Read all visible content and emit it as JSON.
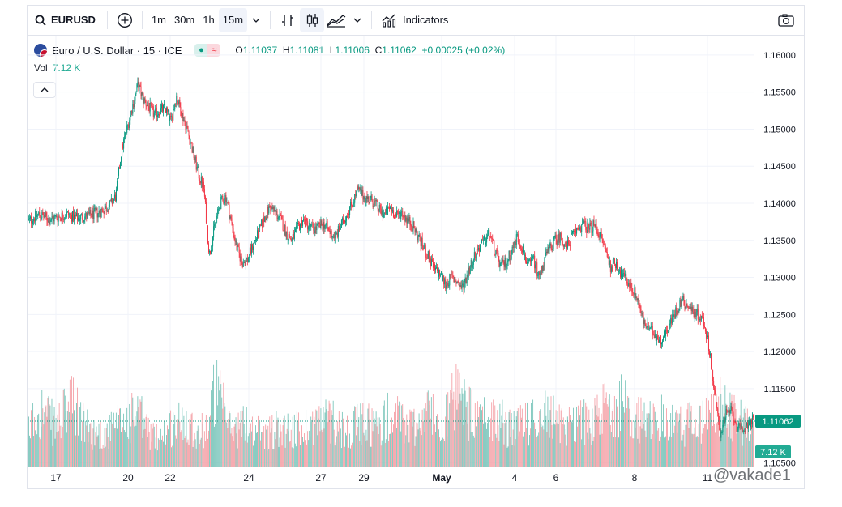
{
  "toolbar": {
    "symbol": "EURUSD",
    "intervals": [
      "1m",
      "30m",
      "1h",
      "15m"
    ],
    "active_interval": "15m",
    "indicators_label": "Indicators"
  },
  "legend": {
    "title": "Euro / U.S. Dollar · 15 · ICE",
    "open_label": "O",
    "open": "1.11037",
    "high_label": "H",
    "high": "1.11081",
    "low_label": "L",
    "low": "1.11006",
    "close_label": "C",
    "close": "1.11062",
    "change": "+0.00025 (+0.02%)"
  },
  "volume": {
    "label": "Vol",
    "value": "7.12 K"
  },
  "price_axis": {
    "ticks": [
      "1.16000",
      "1.15500",
      "1.15000",
      "1.14500",
      "1.14000",
      "1.13500",
      "1.13000",
      "1.12500",
      "1.12000",
      "1.11500",
      "1.10500"
    ],
    "current_price_label": "1.11062",
    "volume_label": "7.12 K"
  },
  "time_axis": {
    "ticks": [
      "17",
      "20",
      "22",
      "24",
      "27",
      "29",
      "May",
      "4",
      "6",
      "8",
      "11"
    ]
  },
  "watermark": "@vakade1",
  "colors": {
    "up": "#089981",
    "down": "#f23645",
    "up_volume": "#7fc7bd",
    "down_volume": "#f5a3a9",
    "accent": "#089981"
  },
  "chart_data": {
    "type": "candlestick",
    "ylim": [
      1.1045,
      1.1625
    ],
    "price_path": [
      [
        0,
        1.1375
      ],
      [
        2,
        1.1385
      ],
      [
        4,
        1.1378
      ],
      [
        7,
        1.1385
      ],
      [
        9,
        1.138
      ],
      [
        11,
        1.1383
      ],
      [
        13,
        1.1388
      ],
      [
        15,
        1.1398
      ],
      [
        16,
        1.141
      ],
      [
        17,
        1.147
      ],
      [
        19,
        1.153
      ],
      [
        20,
        1.156
      ],
      [
        21,
        1.154
      ],
      [
        23,
        1.152
      ],
      [
        24,
        1.1525
      ],
      [
        25,
        1.1528
      ],
      [
        26,
        1.151
      ],
      [
        27,
        1.1545
      ],
      [
        28,
        1.152
      ],
      [
        29,
        1.15
      ],
      [
        30,
        1.147
      ],
      [
        31,
        1.144
      ],
      [
        32,
        1.142
      ],
      [
        33,
        1.133
      ],
      [
        34,
        1.137
      ],
      [
        35,
        1.14
      ],
      [
        36,
        1.141
      ],
      [
        37,
        1.1375
      ],
      [
        38,
        1.134
      ],
      [
        39,
        1.132
      ],
      [
        40,
        1.1325
      ],
      [
        41,
        1.1345
      ],
      [
        42,
        1.136
      ],
      [
        43,
        1.138
      ],
      [
        44,
        1.1395
      ],
      [
        45,
        1.1388
      ],
      [
        46,
        1.1378
      ],
      [
        47,
        1.136
      ],
      [
        48,
        1.135
      ],
      [
        49,
        1.1365
      ],
      [
        50,
        1.1378
      ],
      [
        51,
        1.137
      ],
      [
        52,
        1.1365
      ],
      [
        54,
        1.1372
      ],
      [
        55,
        1.136
      ],
      [
        56,
        1.1355
      ],
      [
        57,
        1.137
      ],
      [
        59,
        1.14
      ],
      [
        60,
        1.1418
      ],
      [
        61,
        1.141
      ],
      [
        62,
        1.1405
      ],
      [
        63,
        1.1402
      ],
      [
        64,
        1.139
      ],
      [
        65,
        1.1385
      ],
      [
        66,
        1.1395
      ],
      [
        67,
        1.1382
      ],
      [
        68,
        1.1388
      ],
      [
        69,
        1.1378
      ],
      [
        70,
        1.137
      ],
      [
        71,
        1.1355
      ],
      [
        72,
        1.134
      ],
      [
        73,
        1.1325
      ],
      [
        74,
        1.131
      ],
      [
        75,
        1.1305
      ],
      [
        76,
        1.129
      ],
      [
        77,
        1.13
      ],
      [
        78,
        1.1295
      ],
      [
        79,
        1.1285
      ],
      [
        80,
        1.1305
      ],
      [
        81,
        1.1325
      ],
      [
        82,
        1.134
      ],
      [
        83,
        1.1348
      ],
      [
        84,
        1.136
      ],
      [
        85,
        1.1335
      ],
      [
        86,
        1.1315
      ],
      [
        87,
        1.132
      ],
      [
        88,
        1.1335
      ],
      [
        89,
        1.1355
      ],
      [
        90,
        1.134
      ],
      [
        91,
        1.1315
      ],
      [
        92,
        1.1325
      ],
      [
        93,
        1.13
      ],
      [
        94,
        1.1325
      ],
      [
        95,
        1.134
      ],
      [
        96,
        1.135
      ],
      [
        97,
        1.1355
      ],
      [
        98,
        1.134
      ],
      [
        99,
        1.1355
      ],
      [
        100,
        1.1365
      ],
      [
        101,
        1.1372
      ],
      [
        102,
        1.1365
      ],
      [
        103,
        1.137
      ],
      [
        104,
        1.136
      ],
      [
        105,
        1.134
      ],
      [
        106,
        1.1315
      ],
      [
        107,
        1.132
      ],
      [
        108,
        1.1305
      ],
      [
        109,
        1.1295
      ],
      [
        110,
        1.1285
      ],
      [
        111,
        1.127
      ],
      [
        112,
        1.124
      ],
      [
        113,
        1.123
      ],
      [
        114,
        1.1225
      ],
      [
        115,
        1.1215
      ],
      [
        116,
        1.1225
      ],
      [
        117,
        1.124
      ],
      [
        118,
        1.1255
      ],
      [
        119,
        1.127
      ],
      [
        120,
        1.1262
      ],
      [
        121,
        1.1255
      ],
      [
        122,
        1.125
      ],
      [
        123,
        1.124
      ],
      [
        124,
        1.1205
      ],
      [
        125,
        1.114
      ],
      [
        126,
        1.109
      ],
      [
        127,
        1.1115
      ],
      [
        128,
        1.112
      ],
      [
        129,
        1.11
      ],
      [
        130,
        1.109
      ],
      [
        131,
        1.1105
      ],
      [
        132,
        1.1106
      ]
    ],
    "last_price": 1.11062,
    "volume_profile": [
      [
        0,
        0.42
      ],
      [
        2,
        0.75
      ],
      [
        5,
        0.5
      ],
      [
        8,
        0.78
      ],
      [
        11,
        0.45
      ],
      [
        14,
        0.4
      ],
      [
        17,
        0.55
      ],
      [
        20,
        0.65
      ],
      [
        23,
        0.35
      ],
      [
        26,
        0.5
      ],
      [
        29,
        0.6
      ],
      [
        31,
        0.4
      ],
      [
        33,
        0.55
      ],
      [
        34,
        0.98
      ],
      [
        37,
        0.45
      ],
      [
        40,
        0.55
      ],
      [
        43,
        0.4
      ],
      [
        46,
        0.5
      ],
      [
        49,
        0.45
      ],
      [
        52,
        0.55
      ],
      [
        55,
        0.6
      ],
      [
        58,
        0.45
      ],
      [
        61,
        0.55
      ],
      [
        64,
        0.5
      ],
      [
        66,
        0.65
      ],
      [
        70,
        0.5
      ],
      [
        73,
        0.7
      ],
      [
        75,
        0.55
      ],
      [
        78,
        0.85
      ],
      [
        82,
        0.55
      ],
      [
        85,
        0.65
      ],
      [
        88,
        0.45
      ],
      [
        91,
        0.55
      ],
      [
        94,
        0.7
      ],
      [
        97,
        0.5
      ],
      [
        100,
        0.6
      ],
      [
        103,
        0.55
      ],
      [
        106,
        0.8
      ],
      [
        109,
        0.75
      ],
      [
        112,
        0.55
      ],
      [
        115,
        0.6
      ],
      [
        118,
        0.5
      ],
      [
        121,
        0.55
      ],
      [
        124,
        0.6
      ],
      [
        126,
        0.75
      ],
      [
        128,
        0.6
      ],
      [
        130,
        0.55
      ],
      [
        132,
        0.45
      ]
    ]
  }
}
